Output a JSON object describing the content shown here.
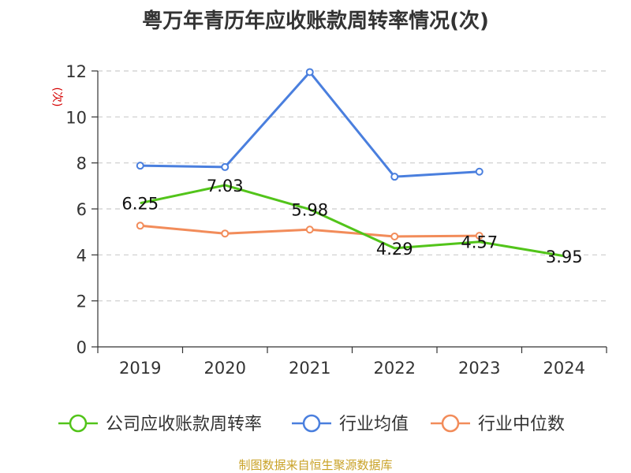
{
  "chart_data": {
    "type": "line",
    "title": "粤万年青历年应收账款周转率情况(次)",
    "unit_label": "(次)",
    "categories": [
      "2019",
      "2020",
      "2021",
      "2022",
      "2023",
      "2024"
    ],
    "ylim": [
      0,
      12
    ],
    "yticks": [
      "0",
      "2",
      "4",
      "6",
      "8",
      "10",
      "12"
    ],
    "grid": true,
    "legend_position": "bottom",
    "series": [
      {
        "name": "公司应收账款周转率",
        "color": "#52c41a",
        "values": [
          6.25,
          7.03,
          5.98,
          4.29,
          4.57,
          3.95
        ],
        "labels": [
          "6.25",
          "7.03",
          "5.98",
          "4.29",
          "4.57",
          "3.95"
        ]
      },
      {
        "name": "行业均值",
        "color": "#4a7fde",
        "values": [
          7.88,
          7.82,
          11.95,
          7.4,
          7.62,
          null
        ]
      },
      {
        "name": "行业中位数",
        "color": "#f28c5a",
        "values": [
          5.27,
          4.93,
          5.1,
          4.8,
          4.83,
          null
        ]
      }
    ]
  },
  "footer": {
    "source": "制图数据来自恒生聚源数据库"
  }
}
